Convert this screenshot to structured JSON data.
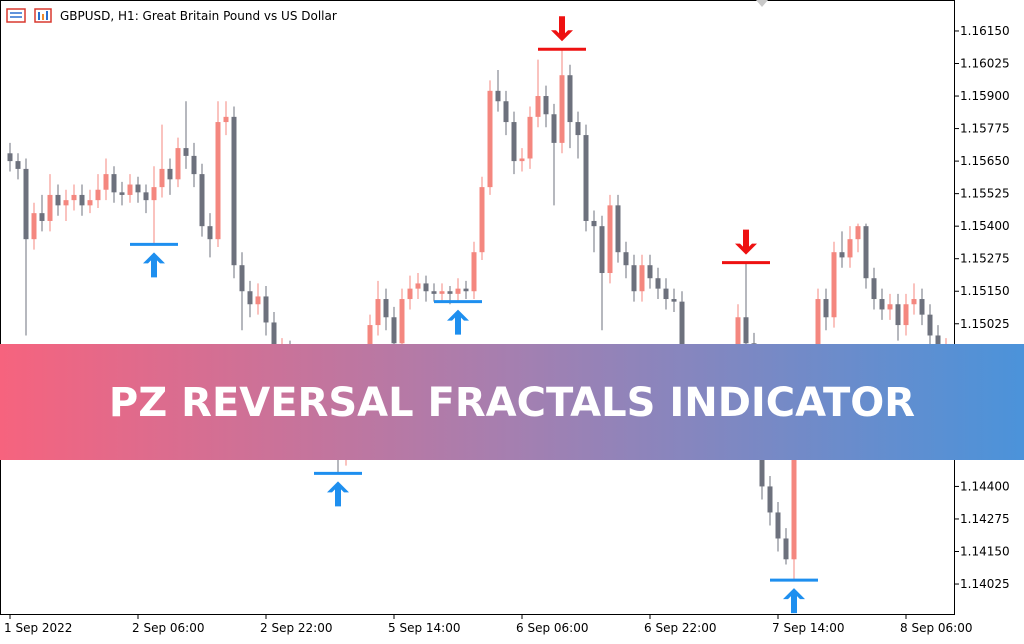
{
  "chart_data": {
    "type": "candlestick",
    "title": "GBPUSD, H1:  Great Britain Pound vs US Dollar",
    "banner": "PZ REVERSAL FRACTALS INDICATOR",
    "up_color": "#f4877f",
    "down_color": "#6d717d",
    "fractal_low_color": "#1e8fef",
    "fractal_high_color": "#ee1111",
    "categories": [
      "1 Sep 2022",
      null,
      null,
      null,
      null,
      null,
      null,
      null,
      null,
      null,
      null,
      null,
      null,
      null,
      null,
      null,
      "2 Sep 06:00",
      null,
      null,
      null,
      null,
      null,
      null,
      null,
      null,
      null,
      null,
      null,
      null,
      null,
      null,
      null,
      "2 Sep 22:00",
      null,
      null,
      null,
      null,
      null,
      null,
      null,
      null,
      null,
      null,
      null,
      null,
      null,
      null,
      null,
      "5 Sep 14:00",
      null,
      null,
      null,
      null,
      null,
      null,
      null,
      null,
      null,
      null,
      null,
      null,
      null,
      null,
      null,
      "6 Sep 06:00",
      null,
      null,
      null,
      null,
      null,
      null,
      null,
      null,
      null,
      null,
      null,
      null,
      null,
      null,
      null,
      "6 Sep 22:00",
      null,
      null,
      null,
      null,
      null,
      null,
      null,
      null,
      null,
      null,
      null,
      null,
      null,
      null,
      null,
      "7 Sep 14:00",
      null,
      null,
      null,
      null,
      null,
      null,
      null,
      null,
      null,
      null,
      null,
      null,
      null,
      null,
      null,
      "8 Sep 06:00",
      null,
      null,
      null,
      null,
      null
    ],
    "open": [
      1.1568,
      1.1565,
      1.1562,
      1.1535,
      1.1545,
      1.1542,
      1.1552,
      1.1548,
      1.155,
      1.1552,
      1.1548,
      1.155,
      1.1554,
      1.156,
      1.1553,
      1.1552,
      1.1556,
      1.1553,
      1.155,
      1.1555,
      1.1562,
      1.1558,
      1.157,
      1.1567,
      1.156,
      1.154,
      1.1535,
      1.158,
      1.1582,
      1.1525,
      1.1515,
      1.151,
      1.1513,
      1.1503,
      1.149,
      1.1492,
      1.1485,
      1.148,
      1.1475,
      1.1468,
      1.1462,
      1.1458,
      1.1452,
      1.1465,
      1.1478,
      1.1488,
      1.1502,
      1.1512,
      1.1505,
      1.1495,
      1.1512,
      1.1516,
      1.1518,
      1.1515,
      1.1514,
      1.1515,
      1.1514,
      1.1516,
      1.1515,
      1.153,
      1.1555,
      1.1592,
      1.1588,
      1.158,
      1.1565,
      1.1566,
      1.1582,
      1.159,
      1.1583,
      1.1572,
      1.1598,
      1.158,
      1.1575,
      1.1542,
      1.154,
      1.1522,
      1.1548,
      1.153,
      1.1525,
      1.1515,
      1.1525,
      1.152,
      1.1516,
      1.1512,
      1.1511,
      1.148,
      1.1478,
      1.147,
      1.1462,
      1.147,
      1.1478,
      1.1488,
      1.1505,
      1.1495,
      1.147,
      1.144,
      1.143,
      1.142,
      1.1412,
      1.1458,
      1.147,
      1.149,
      1.1512,
      1.1505,
      1.153,
      1.1528,
      1.1535,
      1.154,
      1.152,
      1.1512,
      1.1508,
      1.151,
      1.1502,
      1.151,
      1.1512,
      1.1506,
      1.1498,
      1.1492
    ],
    "high": [
      1.1572,
      1.1568,
      1.1566,
      1.1549,
      1.1552,
      1.156,
      1.1556,
      1.1554,
      1.1556,
      1.1556,
      1.1554,
      1.156,
      1.1566,
      1.1563,
      1.1557,
      1.156,
      1.1559,
      1.1556,
      1.1563,
      1.1579,
      1.1566,
      1.1574,
      1.1588,
      1.1572,
      1.1564,
      1.1545,
      1.1588,
      1.1588,
      1.1586,
      1.153,
      1.1519,
      1.1518,
      1.1517,
      1.1507,
      1.1497,
      1.1496,
      1.1489,
      1.1484,
      1.1479,
      1.1472,
      1.1466,
      1.1462,
      1.1469,
      1.1482,
      1.1492,
      1.1506,
      1.1519,
      1.1516,
      1.1509,
      1.1516,
      1.1521,
      1.1522,
      1.1521,
      1.1518,
      1.1518,
      1.1517,
      1.152,
      1.1519,
      1.1534,
      1.1559,
      1.1596,
      1.16,
      1.1592,
      1.1584,
      1.157,
      1.1586,
      1.1604,
      1.1594,
      1.1587,
      1.1608,
      1.1602,
      1.1584,
      1.1579,
      1.1546,
      1.1544,
      1.1552,
      1.1552,
      1.1534,
      1.1529,
      1.1529,
      1.1529,
      1.1524,
      1.152,
      1.1516,
      1.1515,
      1.1484,
      1.1482,
      1.1474,
      1.1474,
      1.1482,
      1.1492,
      1.151,
      1.1526,
      1.1499,
      1.1474,
      1.1444,
      1.1434,
      1.1424,
      1.1462,
      1.1474,
      1.1494,
      1.1516,
      1.1516,
      1.1534,
      1.1538,
      1.154,
      1.1541,
      1.1541,
      1.1524,
      1.1516,
      1.1514,
      1.1514,
      1.1514,
      1.1518,
      1.1516,
      1.151,
      1.1502,
      1.1497
    ],
    "low": [
      1.1561,
      1.1558,
      1.1498,
      1.1531,
      1.1538,
      1.1538,
      1.1544,
      1.1542,
      1.1546,
      1.1544,
      1.1545,
      1.1547,
      1.155,
      1.1549,
      1.1548,
      1.1549,
      1.1549,
      1.1545,
      1.1533,
      1.1551,
      1.1552,
      1.1555,
      1.1562,
      1.1555,
      1.1536,
      1.1528,
      1.1532,
      1.1575,
      1.152,
      1.15,
      1.1505,
      1.1506,
      1.1498,
      1.1485,
      1.1486,
      1.148,
      1.1475,
      1.147,
      1.1463,
      1.1457,
      1.1452,
      1.1445,
      1.1448,
      1.1461,
      1.1474,
      1.1484,
      1.1498,
      1.15,
      1.149,
      1.1491,
      1.1508,
      1.1512,
      1.1511,
      1.1511,
      1.1511,
      1.151,
      1.1511,
      1.1512,
      1.1512,
      1.1527,
      1.1552,
      1.1584,
      1.1575,
      1.156,
      1.1561,
      1.1562,
      1.1578,
      1.1578,
      1.1548,
      1.1568,
      1.157,
      1.1566,
      1.1538,
      1.153,
      1.15,
      1.1518,
      1.1526,
      1.152,
      1.1511,
      1.1511,
      1.1516,
      1.1512,
      1.1508,
      1.1507,
      1.1476,
      1.1473,
      1.1465,
      1.1457,
      1.1458,
      1.1466,
      1.1474,
      1.1484,
      1.149,
      1.1465,
      1.1435,
      1.1425,
      1.1415,
      1.141,
      1.1404,
      1.1454,
      1.1466,
      1.1486,
      1.15,
      1.1501,
      1.1524,
      1.1524,
      1.153,
      1.1516,
      1.1508,
      1.1504,
      1.1504,
      1.1496,
      1.1498,
      1.1506,
      1.1502,
      1.1494,
      1.1488,
      1.149
    ],
    "close": [
      1.1565,
      1.1562,
      1.1535,
      1.1545,
      1.1542,
      1.1552,
      1.1548,
      1.155,
      1.1552,
      1.1548,
      1.155,
      1.1554,
      1.156,
      1.1553,
      1.1552,
      1.1556,
      1.1553,
      1.155,
      1.1555,
      1.1562,
      1.1558,
      1.157,
      1.1567,
      1.156,
      1.154,
      1.1535,
      1.158,
      1.1582,
      1.1525,
      1.1515,
      1.151,
      1.1513,
      1.1503,
      1.149,
      1.1492,
      1.1485,
      1.148,
      1.1475,
      1.1468,
      1.1462,
      1.1458,
      1.1452,
      1.1465,
      1.1478,
      1.1488,
      1.1502,
      1.1512,
      1.1505,
      1.1495,
      1.1512,
      1.1516,
      1.1518,
      1.1515,
      1.1514,
      1.1515,
      1.1514,
      1.1516,
      1.1515,
      1.153,
      1.1555,
      1.1592,
      1.1588,
      1.158,
      1.1565,
      1.1566,
      1.1582,
      1.159,
      1.1583,
      1.1572,
      1.1598,
      1.158,
      1.1575,
      1.1542,
      1.154,
      1.1522,
      1.1548,
      1.153,
      1.1525,
      1.1515,
      1.1525,
      1.152,
      1.1516,
      1.1512,
      1.1511,
      1.148,
      1.1478,
      1.147,
      1.1462,
      1.147,
      1.1478,
      1.1488,
      1.1505,
      1.1495,
      1.147,
      1.144,
      1.143,
      1.142,
      1.1412,
      1.1458,
      1.147,
      1.149,
      1.1512,
      1.1505,
      1.153,
      1.1528,
      1.1535,
      1.154,
      1.152,
      1.1512,
      1.1508,
      1.151,
      1.1502,
      1.151,
      1.1512,
      1.1506,
      1.1498,
      1.1492,
      1.1494
    ],
    "fractal_lows": [
      18,
      41,
      56,
      98
    ],
    "fractal_highs": [
      69,
      92
    ],
    "ylim": [
      1.13906,
      1.16269
    ],
    "yticks": [
      {
        "value": 1.1615,
        "label": "1.16150"
      },
      {
        "value": 1.16025,
        "label": "1.16025"
      },
      {
        "value": 1.159,
        "label": "1.15900"
      },
      {
        "value": 1.15775,
        "label": "1.15775"
      },
      {
        "value": 1.1565,
        "label": "1.15650"
      },
      {
        "value": 1.15525,
        "label": "1.15525"
      },
      {
        "value": 1.154,
        "label": "1.15400"
      },
      {
        "value": 1.15275,
        "label": "1.15275"
      },
      {
        "value": 1.1515,
        "label": "1.15150"
      },
      {
        "value": 1.15025,
        "label": "1.15025"
      },
      {
        "value": 1.149,
        "label": "1.14900"
      },
      {
        "value": 1.14775,
        "label": "1.14775"
      },
      {
        "value": 1.1465,
        "label": "1.14650"
      },
      {
        "value": 1.14525,
        "label": "1.14525"
      },
      {
        "value": 1.144,
        "label": "1.14400"
      },
      {
        "value": 1.14275,
        "label": "1.14275"
      },
      {
        "value": 1.1415,
        "label": "1.14150"
      },
      {
        "value": 1.14025,
        "label": "1.14025"
      }
    ]
  }
}
